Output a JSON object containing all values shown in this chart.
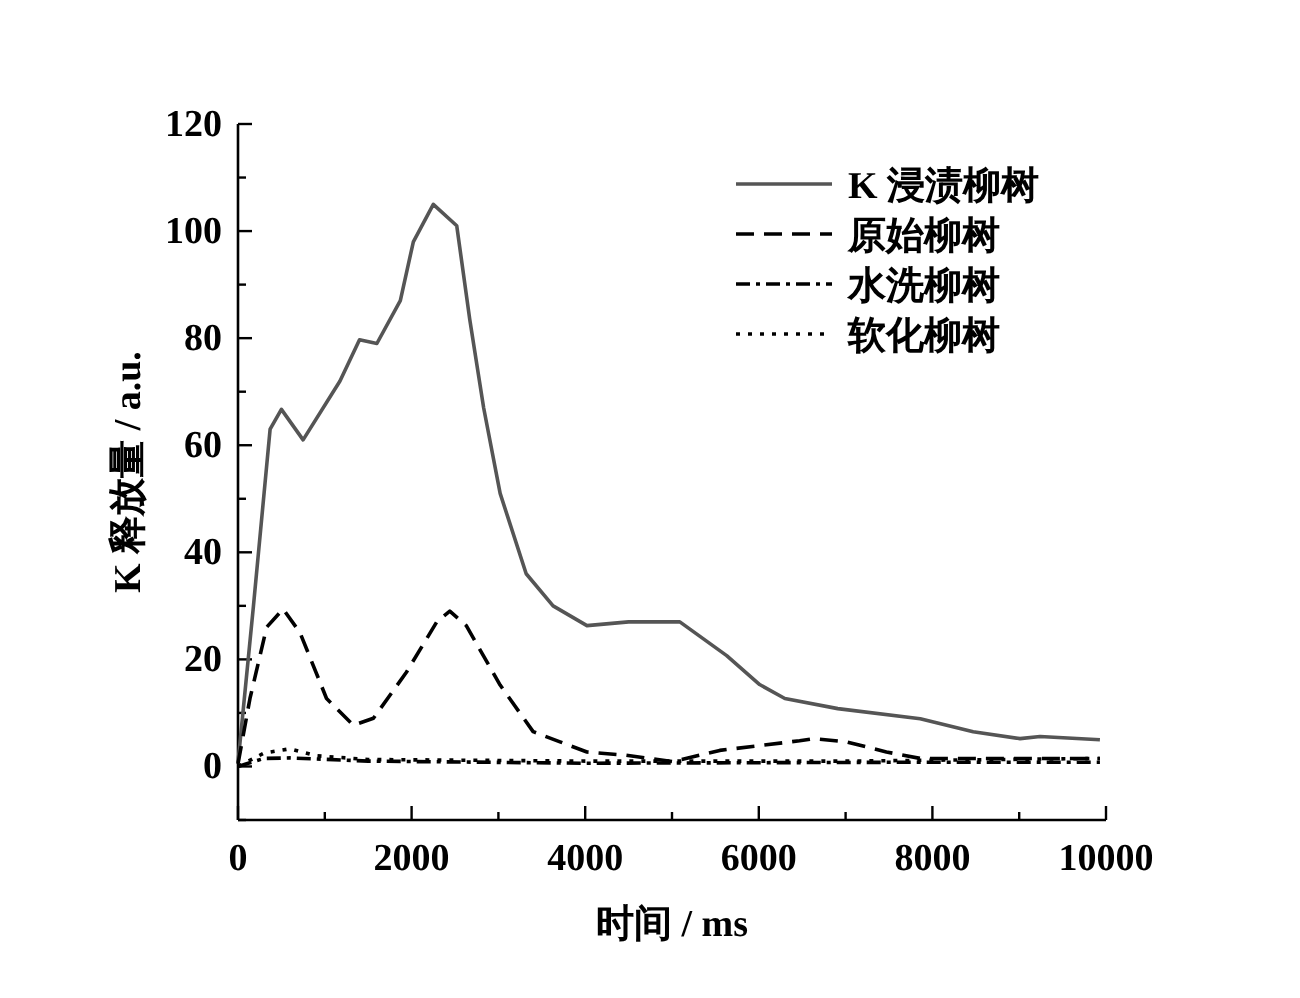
{
  "chart_data": {
    "type": "line",
    "xlabel": "时间 / ms",
    "ylabel": "K 释放量 / a.u.",
    "xlim": [
      0,
      10000
    ],
    "ylim": [
      -10,
      120
    ],
    "xticks": [
      0,
      {
        "value": 1000,
        "label": null
      },
      2000,
      {
        "value": 3000,
        "label": null
      },
      4000,
      {
        "value": 5000,
        "label": null
      },
      6000,
      {
        "value": 7000,
        "label": null
      },
      8000,
      {
        "value": 9000,
        "label": null
      },
      10000
    ],
    "yticks": [
      {
        "value": -10,
        "label": null
      },
      0,
      {
        "value": 10,
        "label": null
      },
      20,
      {
        "value": 30,
        "label": null
      },
      40,
      {
        "value": 50,
        "label": null
      },
      60,
      {
        "value": 70,
        "label": null
      },
      80,
      {
        "value": 90,
        "label": null
      },
      100,
      {
        "value": 110,
        "label": null
      },
      120
    ],
    "grid": false,
    "legend": "top right",
    "marker": "none",
    "series": [
      {
        "name": "K 浸渍柳树",
        "color": "#555555",
        "line_style": "solid",
        "x": [
          0,
          178,
          370,
          500,
          750,
          1175,
          1400,
          1600,
          1870,
          2020,
          2250,
          2520,
          2670,
          2830,
          3020,
          3320,
          3630,
          4020,
          4500,
          5090,
          5630,
          6010,
          6300,
          6910,
          7860,
          8470,
          9010,
          9240,
          9930
        ],
        "values": [
          0.7,
          30,
          63,
          66.7,
          61,
          72,
          79.7,
          79,
          87,
          98,
          105,
          101,
          83.5,
          67,
          51,
          36,
          30,
          26.3,
          27,
          27,
          20.7,
          15.3,
          12.7,
          10.8,
          8.9,
          6.5,
          5.2,
          5.6,
          5
        ]
      },
      {
        "name": "原始柳树",
        "color": "#000000",
        "line_style": "dashed",
        "x": [
          0,
          138,
          330,
          520,
          714,
          1020,
          1330,
          1560,
          1940,
          2290,
          2440,
          2630,
          3020,
          3400,
          3710,
          4020,
          4470,
          5010,
          5550,
          6470,
          6630,
          7010,
          7470,
          7860,
          9000,
          9930
        ],
        "values": [
          0.5,
          12.7,
          26,
          29.4,
          25,
          12.7,
          7.7,
          9,
          17.6,
          27,
          29,
          26.3,
          15.2,
          6.5,
          4.6,
          2.7,
          2.1,
          0.9,
          3,
          4.8,
          5.2,
          4.6,
          2.7,
          1.5,
          1.5,
          1.5
        ]
      },
      {
        "name": "水洗柳树",
        "color": "#000000",
        "line_style": "dashdot",
        "x": [
          0,
          300,
          600,
          1500,
          4000,
          8000,
          9930
        ],
        "values": [
          0,
          1.5,
          1.6,
          1,
          0.6,
          0.8,
          0.8
        ]
      },
      {
        "name": "软化柳树",
        "color": "#000000",
        "line_style": "dotted",
        "x": [
          0,
          300,
          600,
          900,
          1500,
          4000,
          7000,
          9930
        ],
        "values": [
          0,
          2.5,
          3.3,
          2,
          1.3,
          1,
          1,
          1.5
        ]
      }
    ]
  }
}
